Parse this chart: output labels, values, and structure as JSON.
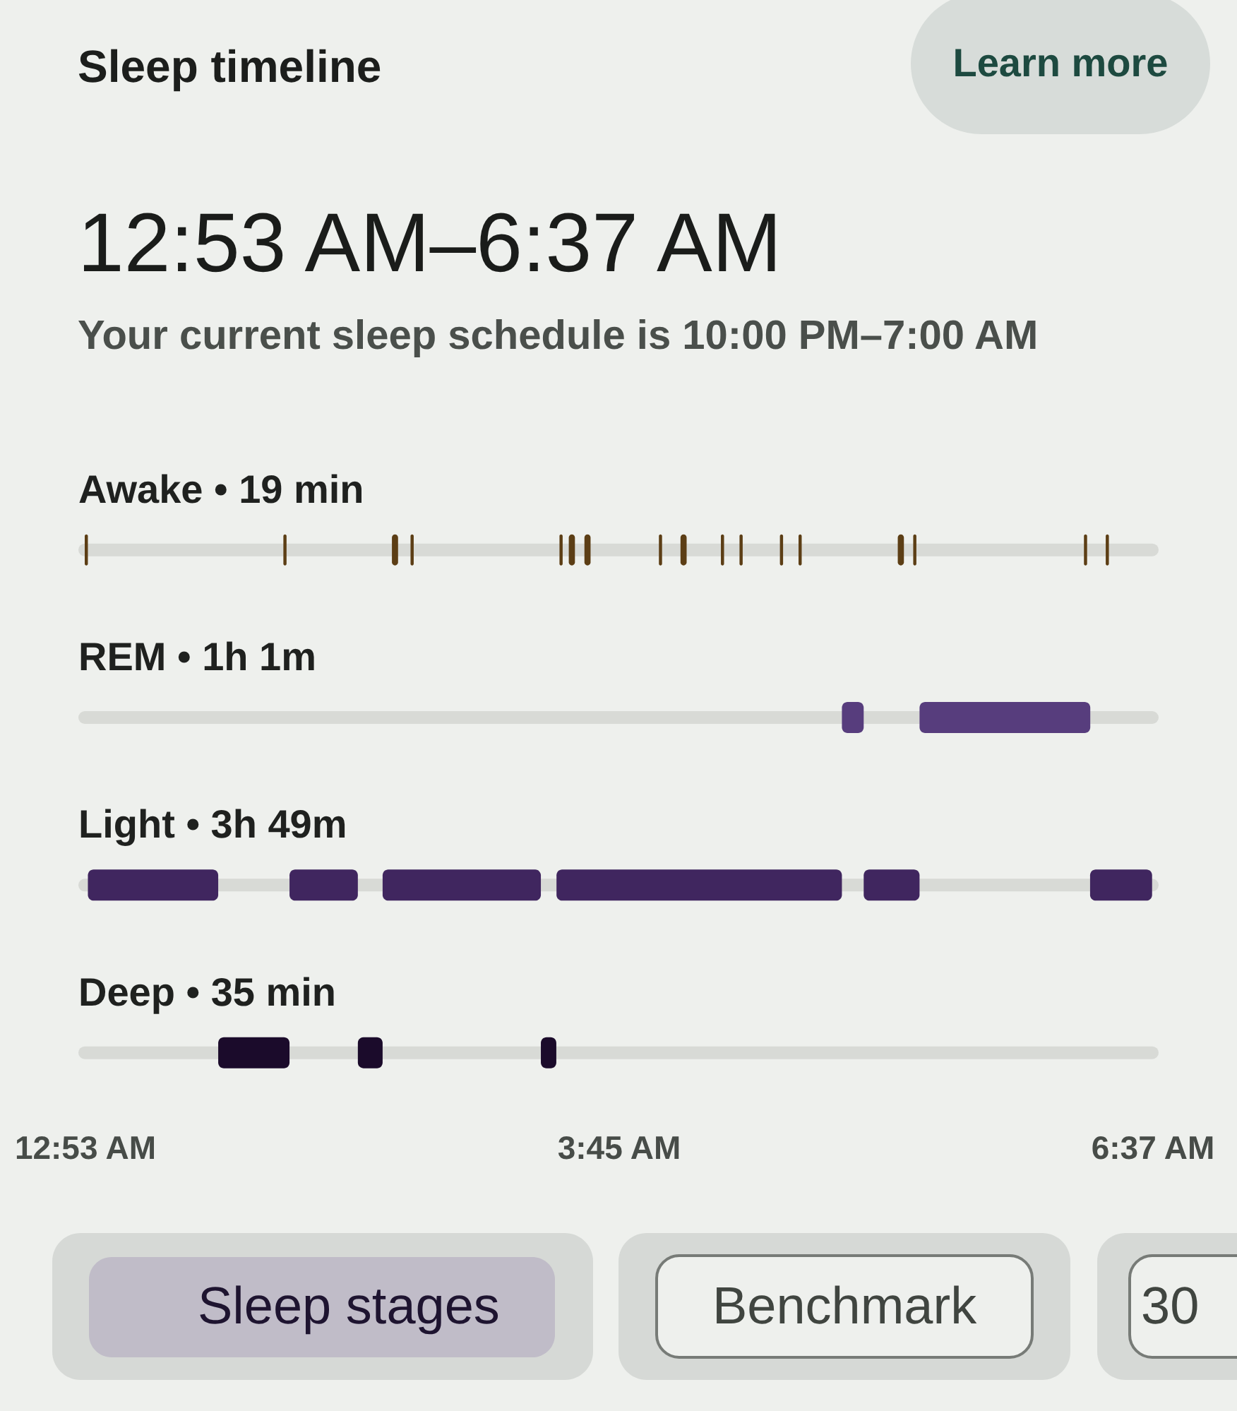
{
  "chart_data": {
    "type": "bar",
    "orientation": "horizontal",
    "title": "Sleep timeline",
    "subtitle": "12:53 AM–6:37 AM",
    "annotations": [
      "Your current sleep schedule is 10:00 PM–7:00 AM",
      "Learn more",
      "Sleep stages",
      "Benchmark",
      "30"
    ],
    "categories": [
      "Awake • 19 min",
      "REM • 1h 1m",
      "Light • 3h 49m",
      "Deep • 35 min"
    ],
    "series": [
      {
        "values": [
          0.017,
          0.117,
          0.7,
          0.383
        ],
        "base": [
          0.883,
          4.95,
          0.9,
          1.6
        ],
        "colors": [
          "#5c3e15",
          "#573d7d",
          "#40265f",
          "#1b0b2b"
        ]
      },
      {
        "values": [
          0.017,
          0.917,
          0.367,
          0.133
        ],
        "base": [
          1.95,
          5.367,
          1.983,
          2.35
        ],
        "colors": [
          "#5c3e15",
          "#573d7d",
          "#40265f",
          "#1b0b2b"
        ]
      },
      {
        "values": [
          0.033,
          null,
          0.85,
          0.083
        ],
        "base": [
          2.533,
          null,
          2.483,
          3.333
        ],
        "colors": [
          "#5c3e15",
          null,
          "#40265f",
          "#1b0b2b"
        ]
      },
      {
        "values": [
          0.017,
          null,
          1.533,
          null
        ],
        "base": [
          2.633,
          null,
          3.417,
          null
        ],
        "colors": [
          "#5c3e15",
          null,
          "#40265f",
          null
        ]
      },
      {
        "values": [
          0.017,
          null,
          0.3,
          null
        ],
        "base": [
          3.433,
          null,
          5.067,
          null
        ],
        "colors": [
          "#5c3e15",
          null,
          "#40265f",
          null
        ]
      },
      {
        "values": [
          0.033,
          null,
          0.333,
          null
        ],
        "base": [
          3.483,
          null,
          6.283,
          null
        ],
        "colors": [
          "#5c3e15",
          null,
          "#40265f",
          null
        ]
      },
      {
        "values": [
          0.033,
          null,
          null,
          null
        ],
        "base": [
          3.567,
          null,
          null,
          null
        ],
        "colors": [
          "#5c3e15",
          null,
          null,
          null
        ]
      },
      {
        "values": [
          0.017,
          null,
          null,
          null
        ],
        "base": [
          3.967,
          null,
          null,
          null
        ],
        "colors": [
          "#5c3e15",
          null,
          null,
          null
        ]
      },
      {
        "values": [
          0.033,
          null,
          null,
          null
        ],
        "base": [
          4.083,
          null,
          null,
          null
        ],
        "colors": [
          "#5c3e15",
          null,
          null,
          null
        ]
      },
      {
        "values": [
          0.017,
          null,
          null,
          null
        ],
        "base": [
          4.3,
          null,
          null,
          null
        ],
        "colors": [
          "#5c3e15",
          null,
          null,
          null
        ]
      },
      {
        "values": [
          0.017,
          null,
          null,
          null
        ],
        "base": [
          4.4,
          null,
          null,
          null
        ],
        "colors": [
          "#5c3e15",
          null,
          null,
          null
        ]
      },
      {
        "values": [
          0.017,
          null,
          null,
          null
        ],
        "base": [
          4.617,
          null,
          null,
          null
        ],
        "colors": [
          "#5c3e15",
          null,
          null,
          null
        ]
      },
      {
        "values": [
          0.017,
          null,
          null,
          null
        ],
        "base": [
          4.717,
          null,
          null,
          null
        ],
        "colors": [
          "#5c3e15",
          null,
          null,
          null
        ]
      },
      {
        "values": [
          0.033,
          null,
          null,
          null
        ],
        "base": [
          5.25,
          null,
          null,
          null
        ],
        "colors": [
          "#5c3e15",
          null,
          null,
          null
        ]
      },
      {
        "values": [
          0.017,
          null,
          null,
          null
        ],
        "base": [
          5.333,
          null,
          null,
          null
        ],
        "colors": [
          "#5c3e15",
          null,
          null,
          null
        ]
      },
      {
        "values": [
          0.017,
          null,
          null,
          null
        ],
        "base": [
          6.25,
          null,
          null,
          null
        ],
        "colors": [
          "#5c3e15",
          null,
          null,
          null
        ]
      },
      {
        "values": [
          0.017,
          null,
          null,
          null
        ],
        "base": [
          6.367,
          null,
          null,
          null
        ],
        "colors": [
          "#5c3e15",
          null,
          null,
          null
        ]
      }
    ],
    "xlim": [
      0.883,
      6.617
    ],
    "xticks": [
      {
        "value": 0.883,
        "label": "12:53 AM"
      },
      {
        "value": 3.75,
        "label": "3:45 AM"
      },
      {
        "value": 6.617,
        "label": "6:37 AM"
      }
    ]
  }
}
